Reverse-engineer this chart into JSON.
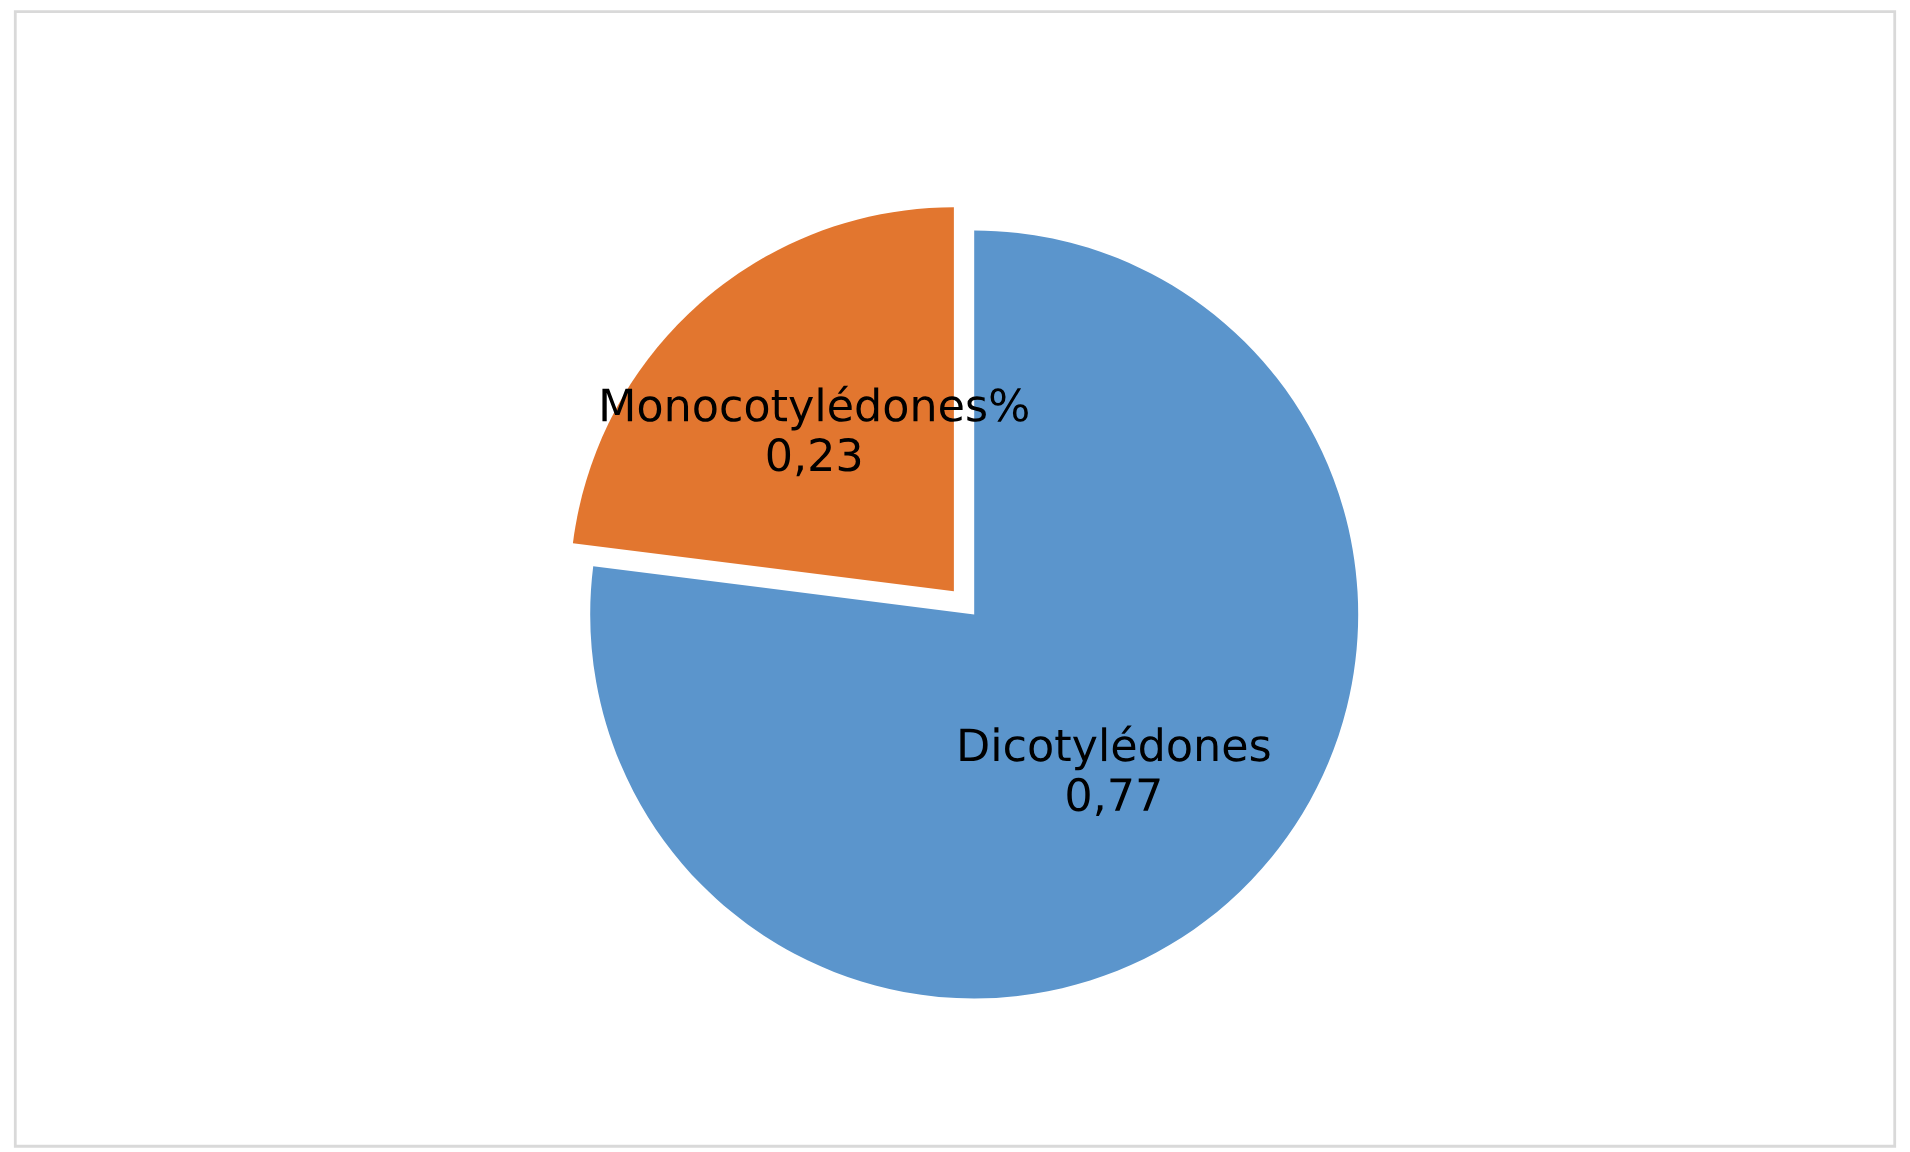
{
  "chart_data": {
    "type": "pie",
    "categories": [
      "Dicotylédones",
      "Monocotylédones%"
    ],
    "values": [
      0.77,
      0.23
    ],
    "value_labels": [
      "0,77",
      "0,23"
    ],
    "colors": [
      "#5b95cc",
      "#e2762f"
    ],
    "legend": false
  }
}
